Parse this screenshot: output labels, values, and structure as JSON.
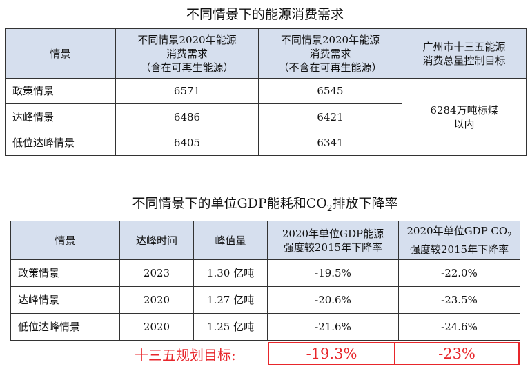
{
  "table1": {
    "title": "不同情景下的能源消费需求",
    "headers": [
      "情景",
      [
        "不同情景2020年能源",
        "消费需求",
        "（含在可再生能源）"
      ],
      [
        "不同情景2020年能源",
        "消费需求",
        "（不含在可再生能源）"
      ],
      [
        "广州市十三五能源",
        "消费总量控制目标"
      ]
    ],
    "rows": [
      {
        "scenario": "政策情景",
        "with_renewable": "6571",
        "without_renewable": "6545"
      },
      {
        "scenario": "达峰情景",
        "with_renewable": "6486",
        "without_renewable": "6421"
      },
      {
        "scenario": "低位达峰情景",
        "with_renewable": "6405",
        "without_renewable": "6341"
      }
    ],
    "target": [
      "6284万吨标煤",
      "以内"
    ]
  },
  "table2": {
    "title_prefix": "不同情景下的单位GDP能耗和CO",
    "title_sub": "2",
    "title_suffix": "排放下降率",
    "headers": {
      "scenario": "情景",
      "peak_time": "达峰时间",
      "peak_value": "峰值量",
      "gdp_energy": [
        "2020年单位GDP能源",
        "强度较2015年下降率"
      ],
      "gdp_co2_line1_prefix": "2020年单位GDP CO",
      "gdp_co2_line1_sub": "2",
      "gdp_co2_line2": "强度较2015年下降率"
    },
    "rows": [
      {
        "scenario": "政策情景",
        "peak_time": "2023",
        "peak_value": "1.30 亿吨",
        "energy_drop": "-19.5%",
        "co2_drop": "-22.0%"
      },
      {
        "scenario": "达峰情景",
        "peak_time": "2020",
        "peak_value": "1.27 亿吨",
        "energy_drop": "-20.6%",
        "co2_drop": "-23.5%"
      },
      {
        "scenario": "低位达峰情景",
        "peak_time": "2020",
        "peak_value": "1.25 亿吨",
        "energy_drop": "-21.6%",
        "co2_drop": "-24.6%"
      }
    ]
  },
  "plan": {
    "label": "十三五规划目标:",
    "energy_target": "-19.3%",
    "co2_target": "-23%",
    "highlight_color": "#e8262b"
  }
}
